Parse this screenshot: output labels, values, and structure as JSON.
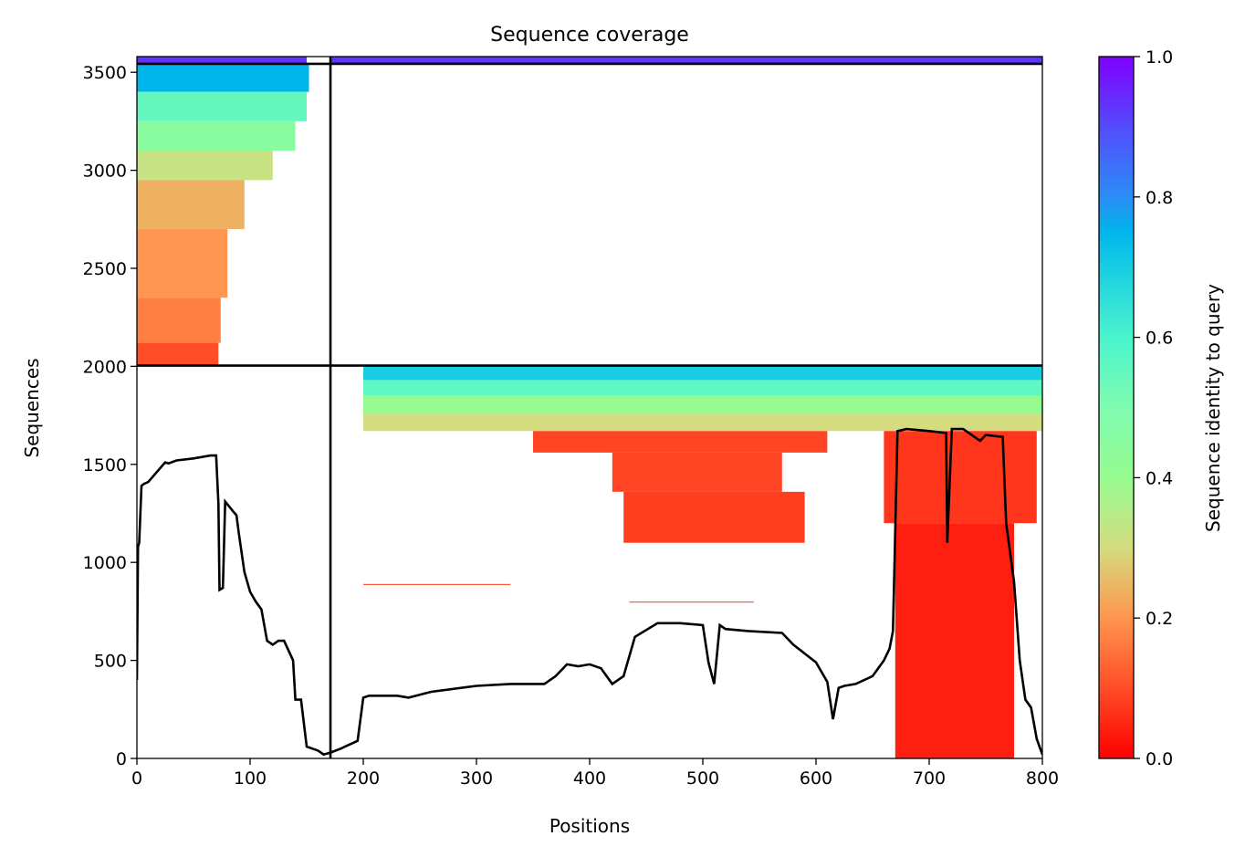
{
  "chart_data": {
    "type": "heatmap",
    "title": "Sequence coverage",
    "xlabel": "Positions",
    "ylabel": "Sequences",
    "xlim": [
      0,
      800
    ],
    "ylim": [
      0,
      3580
    ],
    "x_ticks": [
      0,
      100,
      200,
      300,
      400,
      500,
      600,
      700,
      800
    ],
    "y_ticks": [
      0,
      500,
      1000,
      1500,
      2000,
      2500,
      3000,
      3500
    ],
    "colorbar": {
      "label": "Sequence identity to query",
      "range": [
        0,
        1
      ],
      "ticks": [
        "0.0",
        "0.2",
        "0.4",
        "0.6",
        "0.8",
        "1.0"
      ],
      "colormap": "rainbow_r"
    },
    "chain_boundaries": {
      "position": 171,
      "sequence_counts": [
        2004,
        3543
      ]
    },
    "coverage_blocks": [
      {
        "x0": 0,
        "x1": 150,
        "y0": 3543,
        "y1": 3580,
        "identity": 0.93
      },
      {
        "x0": 171,
        "x1": 800,
        "y0": 3543,
        "y1": 3580,
        "identity": 0.93
      },
      {
        "x0": 0,
        "x1": 152,
        "y0": 3400,
        "y1": 3543,
        "identity": 0.75
      },
      {
        "x0": 0,
        "x1": 150,
        "y0": 3250,
        "y1": 3400,
        "identity": 0.55
      },
      {
        "x0": 0,
        "x1": 140,
        "y0": 3100,
        "y1": 3250,
        "identity": 0.45
      },
      {
        "x0": 0,
        "x1": 120,
        "y0": 2950,
        "y1": 3100,
        "identity": 0.32
      },
      {
        "x0": 0,
        "x1": 95,
        "y0": 2700,
        "y1": 2950,
        "identity": 0.24
      },
      {
        "x0": 0,
        "x1": 80,
        "y0": 2350,
        "y1": 2700,
        "identity": 0.2
      },
      {
        "x0": 0,
        "x1": 74,
        "y0": 2120,
        "y1": 2350,
        "identity": 0.17
      },
      {
        "x0": 0,
        "x1": 72,
        "y0": 2004,
        "y1": 2120,
        "identity": 0.1
      },
      {
        "x0": 200,
        "x1": 800,
        "y0": 1930,
        "y1": 2004,
        "identity": 0.7
      },
      {
        "x0": 200,
        "x1": 800,
        "y0": 1850,
        "y1": 1930,
        "identity": 0.56
      },
      {
        "x0": 200,
        "x1": 800,
        "y0": 1760,
        "y1": 1850,
        "identity": 0.4
      },
      {
        "x0": 200,
        "x1": 800,
        "y0": 1670,
        "y1": 1760,
        "identity": 0.3
      },
      {
        "x0": 350,
        "x1": 610,
        "y0": 1560,
        "y1": 1670,
        "identity": 0.09
      },
      {
        "x0": 420,
        "x1": 570,
        "y0": 1360,
        "y1": 1560,
        "identity": 0.09
      },
      {
        "x0": 430,
        "x1": 590,
        "y0": 1100,
        "y1": 1360,
        "identity": 0.08
      },
      {
        "x0": 200,
        "x1": 330,
        "y0": 885,
        "y1": 890,
        "identity": 0.09
      },
      {
        "x0": 435,
        "x1": 545,
        "y0": 795,
        "y1": 800,
        "identity": 0.09
      },
      {
        "x0": 660,
        "x1": 795,
        "y0": 1200,
        "y1": 1670,
        "identity": 0.07
      },
      {
        "x0": 670,
        "x1": 775,
        "y0": 0,
        "y1": 1200,
        "identity": 0.04
      }
    ],
    "coverage_line": {
      "x": [
        0,
        1,
        2,
        4,
        6,
        10,
        25,
        28,
        35,
        50,
        65,
        70,
        72,
        73,
        76,
        78,
        85,
        88,
        90,
        95,
        100,
        105,
        110,
        115,
        120,
        125,
        130,
        138,
        140,
        145,
        150,
        160,
        165,
        171,
        180,
        195,
        200,
        205,
        230,
        240,
        260,
        300,
        330,
        360,
        370,
        380,
        390,
        400,
        410,
        420,
        430,
        440,
        460,
        480,
        500,
        505,
        510,
        515,
        520,
        540,
        570,
        580,
        600,
        610,
        615,
        620,
        625,
        635,
        650,
        660,
        665,
        668,
        672,
        680,
        700,
        715,
        716,
        720,
        730,
        740,
        745,
        750,
        765,
        768,
        775,
        780,
        785,
        790,
        795,
        800
      ],
      "y": [
        400,
        1080,
        1100,
        1390,
        1400,
        1410,
        1510,
        1505,
        1520,
        1530,
        1545,
        1545,
        1300,
        860,
        870,
        1310,
        1260,
        1240,
        1150,
        950,
        850,
        800,
        760,
        600,
        580,
        600,
        600,
        500,
        300,
        300,
        60,
        40,
        20,
        30,
        50,
        90,
        310,
        320,
        320,
        310,
        340,
        370,
        380,
        380,
        420,
        480,
        470,
        480,
        460,
        380,
        420,
        620,
        690,
        690,
        680,
        490,
        380,
        680,
        660,
        650,
        640,
        580,
        490,
        390,
        200,
        360,
        370,
        380,
        420,
        500,
        560,
        650,
        1670,
        1680,
        1670,
        1660,
        1100,
        1680,
        1680,
        1640,
        1620,
        1650,
        1640,
        1200,
        900,
        500,
        300,
        260,
        100,
        20
      ]
    }
  }
}
